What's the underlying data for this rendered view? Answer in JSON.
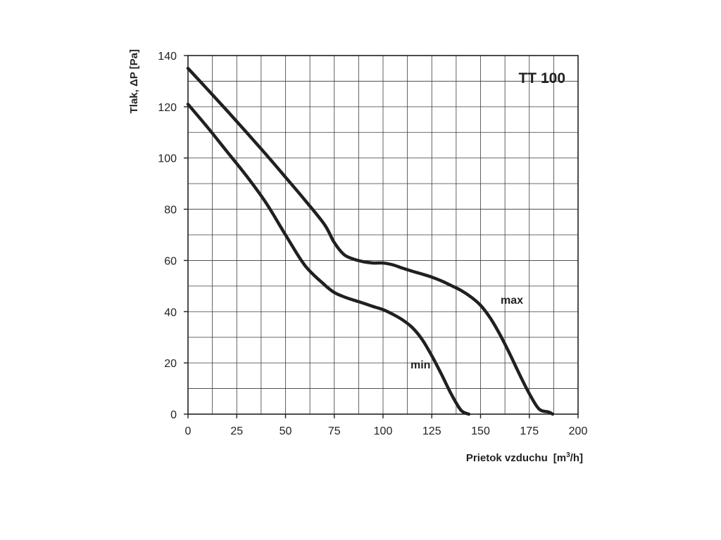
{
  "chart_data": {
    "type": "line",
    "title": "TT 100",
    "xlabel": "Prietok vzduchu",
    "xunit_prefix": "[m",
    "xunit_sup": "3",
    "xunit_suffix": "/h]",
    "ylabel": "Tlak, ΔP [Pa]",
    "xlim": [
      0,
      200
    ],
    "ylim": [
      0,
      140
    ],
    "x_ticks": [
      0,
      25,
      50,
      75,
      100,
      125,
      150,
      175,
      200
    ],
    "y_ticks": [
      0,
      20,
      40,
      60,
      80,
      100,
      120,
      140
    ],
    "x_grid_step": 12.5,
    "y_grid_step": 10,
    "grid": true,
    "series": [
      {
        "name": "max",
        "x": [
          0,
          10,
          20,
          30,
          40,
          50,
          60,
          70,
          75,
          80,
          85,
          90,
          95,
          100,
          105,
          110,
          115,
          120,
          125,
          130,
          135,
          140,
          145,
          150,
          155,
          160,
          165,
          170,
          175,
          180,
          185,
          187
        ],
        "y": [
          135,
          126.8,
          118.5,
          110,
          101.4,
          92.5,
          83.5,
          74,
          67,
          62.3,
          60.5,
          59.5,
          59,
          59,
          58.3,
          57,
          55.8,
          54.7,
          53.5,
          52,
          50.2,
          48.3,
          45.8,
          42.5,
          37.5,
          31,
          23.5,
          15.5,
          8,
          2,
          0.8,
          0
        ]
      },
      {
        "name": "min",
        "x": [
          0,
          10,
          20,
          30,
          40,
          50,
          60,
          70,
          75,
          80,
          85,
          90,
          95,
          100,
          105,
          110,
          115,
          120,
          125,
          130,
          135,
          140,
          144
        ],
        "y": [
          121,
          112,
          102.5,
          93,
          82.5,
          70,
          58,
          50.5,
          47.5,
          45.8,
          44.5,
          43.3,
          42,
          40.8,
          39,
          36.8,
          33.8,
          29.2,
          22.8,
          15.5,
          7.8,
          1.5,
          0
        ]
      }
    ]
  }
}
